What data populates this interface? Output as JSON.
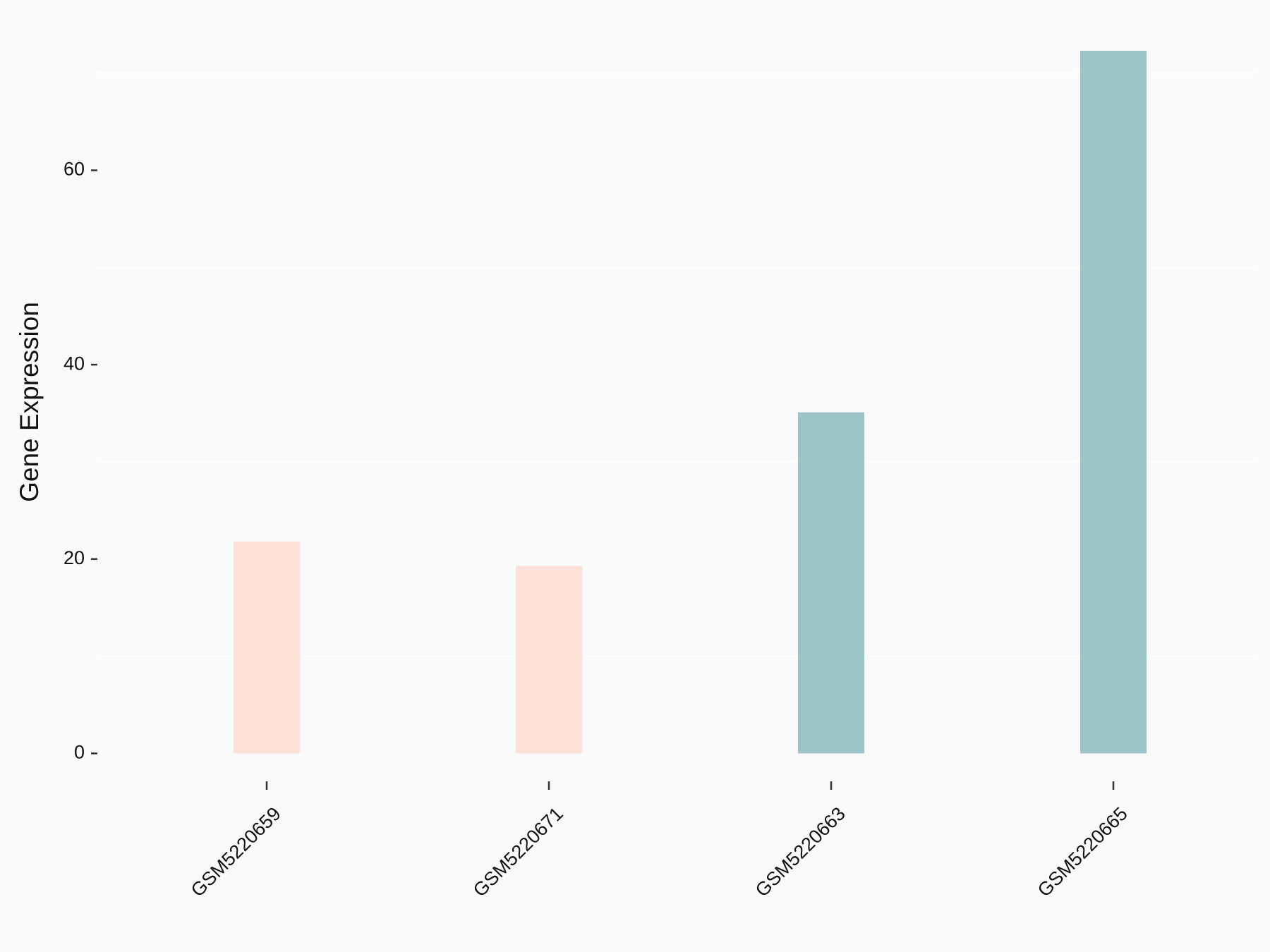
{
  "chart_data": {
    "type": "bar",
    "y_label": "Gene Expression",
    "categories": [
      "GSM5220659",
      "GSM5220671",
      "GSM5220663",
      "GSM5220665"
    ],
    "values": [
      21.8,
      19.3,
      35.1,
      72.3
    ],
    "colors": [
      "#ffe0d6",
      "#ffe0d6",
      "#9dc4c8",
      "#9dc4c8"
    ],
    "ylim": [
      -3.6,
      76
    ],
    "yticks": [
      0,
      20,
      40,
      60
    ],
    "minor_grid": [
      10,
      30,
      50,
      70
    ],
    "background": "#fafafa"
  }
}
